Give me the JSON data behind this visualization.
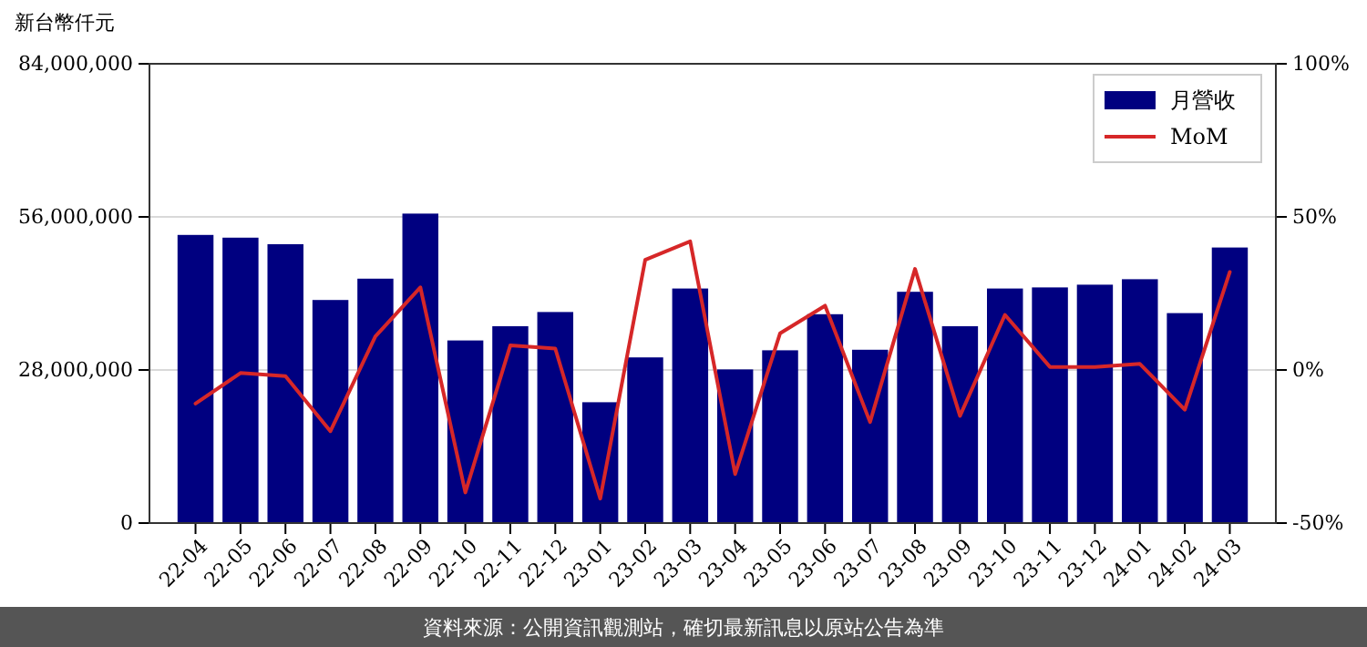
{
  "chart_data": {
    "type": "bar",
    "ylabel": "新台幣仟元",
    "categories": [
      "22-04",
      "22-05",
      "22-06",
      "22-07",
      "22-08",
      "22-09",
      "22-10",
      "22-11",
      "22-12",
      "23-01",
      "23-02",
      "23-03",
      "23-04",
      "23-05",
      "23-06",
      "23-07",
      "23-08",
      "23-09",
      "23-10",
      "23-11",
      "23-12",
      "24-01",
      "24-02",
      "24-03"
    ],
    "series": [
      {
        "name": "月營收",
        "type": "bar",
        "color": "#000080",
        "values": [
          52700000,
          52200000,
          51000000,
          40800000,
          44700000,
          56600000,
          33400000,
          36000000,
          38600000,
          22100000,
          30300000,
          42900000,
          28100000,
          31600000,
          38200000,
          31700000,
          42300000,
          36000000,
          42900000,
          43100000,
          43600000,
          44600000,
          38400000,
          50400000
        ]
      },
      {
        "name": "MoM",
        "type": "line",
        "axis": "y2",
        "color": "#d62728",
        "values": [
          -11,
          -1,
          -2,
          -20,
          11,
          27,
          -40,
          8,
          7,
          -42,
          36,
          42,
          -34,
          12,
          21,
          -17,
          33,
          -15,
          18,
          1,
          1,
          2,
          -13,
          32
        ]
      }
    ],
    "ylim": [
      0,
      84000000
    ],
    "yticks": [
      {
        "value": 0,
        "label": "0"
      },
      {
        "value": 28000000,
        "label": "28,000,000"
      },
      {
        "value": 56000000,
        "label": "56,000,000"
      },
      {
        "value": 84000000,
        "label": "84,000,000"
      }
    ],
    "y2lim": [
      -50,
      100
    ],
    "y2ticks": [
      {
        "value": -50,
        "label": "-50%"
      },
      {
        "value": 0,
        "label": "0%"
      },
      {
        "value": 50,
        "label": "50%"
      },
      {
        "value": 100,
        "label": "100%"
      }
    ],
    "grid": "y",
    "legend": "top right",
    "line_style": "solid",
    "marker": "none",
    "annotations": [
      "資料來源：公開資訊觀測站，確切最新訊息以原站公告為準"
    ]
  }
}
